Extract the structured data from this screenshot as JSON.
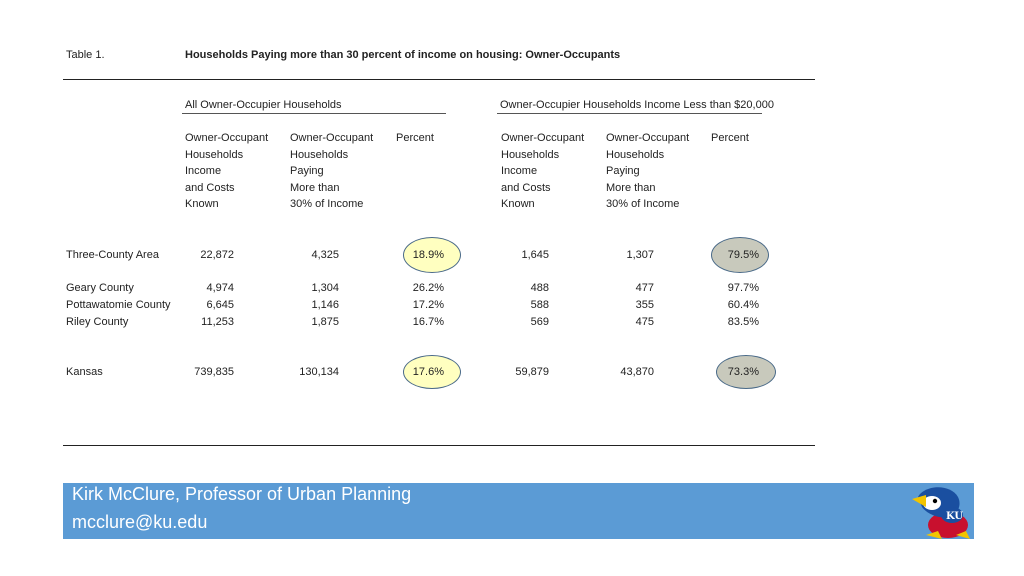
{
  "table_label": "Table 1.",
  "title": "Households Paying more than 30 percent of income on housing: Owner-Occupants",
  "group1_title": "All Owner-Occupier Households",
  "group2_title": "Owner-Occupier Households Income Less than $20,000",
  "col_headers": {
    "known": [
      "Owner-Occupant",
      "Households",
      "Income",
      "and Costs",
      "Known"
    ],
    "paying": [
      "Owner-Occupant",
      "Households",
      "Paying",
      "More than",
      "30% of Income"
    ],
    "percent": [
      "Percent"
    ]
  },
  "rows": [
    {
      "name": "Three-County Area",
      "a_known": "22,872",
      "a_paying": "4,325",
      "a_pct": "18.9%",
      "b_known": "1,645",
      "b_paying": "1,307",
      "b_pct": "79.5%"
    },
    {
      "name": "Geary County",
      "a_known": "4,974",
      "a_paying": "1,304",
      "a_pct": "26.2%",
      "b_known": "488",
      "b_paying": "477",
      "b_pct": "97.7%"
    },
    {
      "name": "Pottawatomie County",
      "a_known": "6,645",
      "a_paying": "1,146",
      "a_pct": "17.2%",
      "b_known": "588",
      "b_paying": "355",
      "b_pct": "60.4%"
    },
    {
      "name": "Riley County",
      "a_known": "11,253",
      "a_paying": "1,875",
      "a_pct": "16.7%",
      "b_known": "569",
      "b_paying": "475",
      "b_pct": "83.5%"
    },
    {
      "name": "Kansas",
      "a_known": "739,835",
      "a_paying": "130,134",
      "a_pct": "17.6%",
      "b_known": "59,879",
      "b_paying": "43,870",
      "b_pct": "73.3%"
    }
  ],
  "highlight_colors": {
    "yellow": "#ffffc0",
    "gray": "#c8c9bc",
    "footer": "#5b9bd5"
  },
  "footer": {
    "name_line": "Kirk McClure, Professor of Urban Planning",
    "email_line": "mcclure@ku.edu"
  },
  "logo": {
    "icon": "jayhawk-logo",
    "text": "KU"
  }
}
